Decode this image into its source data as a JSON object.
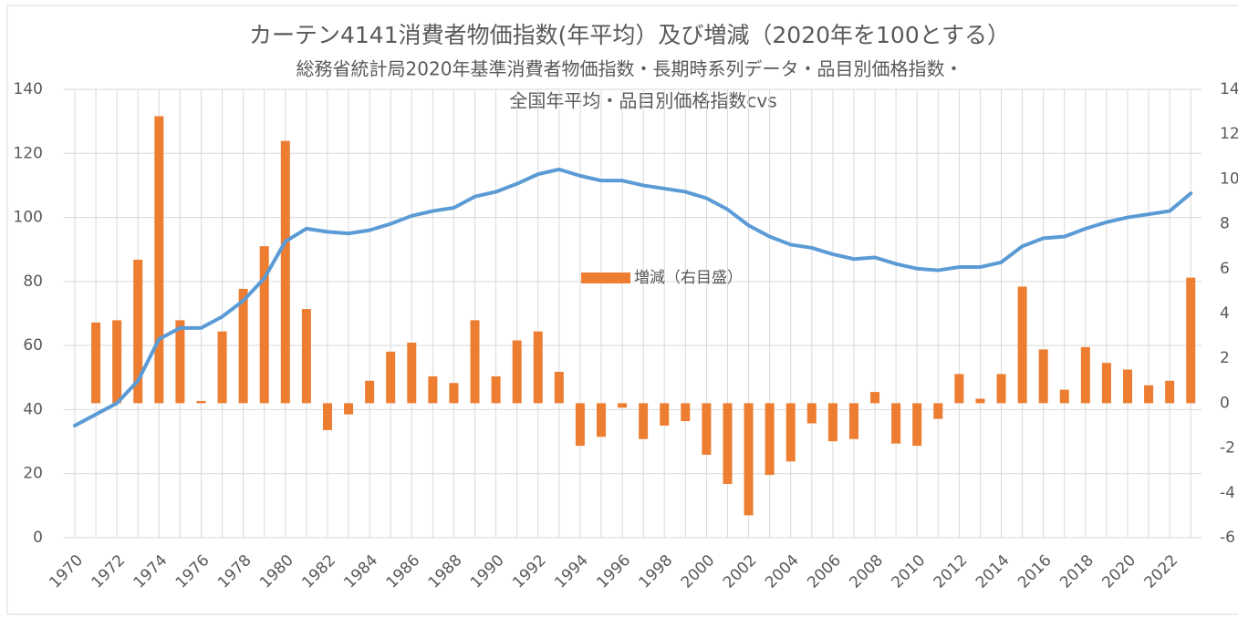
{
  "chart_data": {
    "type": "combo",
    "title": "カーテン4141消費者物価指数(年平均）及び増減（2020年を100とする）",
    "subtitle": [
      "総務省統計局2020年基準消費者物価指数・長期時系列データ・品目別価格指数・",
      "全国年平均・品目別価格指数cvs"
    ],
    "categories": [
      "1970",
      null,
      "1972",
      null,
      "1974",
      null,
      "1976",
      null,
      "1978",
      null,
      "1980",
      null,
      "1982",
      null,
      "1984",
      null,
      "1986",
      null,
      "1988",
      null,
      "1990",
      null,
      "1992",
      null,
      "1994",
      null,
      "1996",
      null,
      "1998",
      null,
      "2000",
      null,
      "2002",
      null,
      "2004",
      null,
      "2006",
      null,
      "2008",
      null,
      "2010",
      null,
      "2012",
      null,
      "2014",
      null,
      "2016",
      null,
      "2018",
      null,
      "2020",
      null,
      "2022",
      null
    ],
    "series": [
      {
        "type": "line",
        "color": "#5b9bd5",
        "values": [
          35,
          38.5,
          42,
          49,
          62,
          65.5,
          65.5,
          69,
          74,
          81,
          92.5,
          96.5,
          95.5,
          95,
          96,
          98,
          100.5,
          102,
          103,
          106.5,
          108,
          110.5,
          113.5,
          115,
          113,
          111.5,
          111.5,
          110,
          109,
          108,
          106,
          102.5,
          97.5,
          94,
          91.5,
          90.5,
          88.5,
          87,
          87.5,
          85.5,
          84,
          83.5,
          84.5,
          84.5,
          86,
          91,
          93.5,
          94,
          96.5,
          98.5,
          100,
          101,
          102,
          107.5
        ]
      },
      {
        "type": "bar",
        "name": "増減（右目盛）",
        "color": "#ed7d31",
        "axis": "y2",
        "values": [
          null,
          3.6,
          3.7,
          6.4,
          12.8,
          3.7,
          0.1,
          3.2,
          5.1,
          7.0,
          11.7,
          4.2,
          -1.2,
          -0.5,
          1.0,
          2.3,
          2.7,
          1.2,
          0.9,
          3.7,
          1.2,
          2.8,
          3.2,
          1.4,
          -1.9,
          -1.5,
          -0.2,
          -1.6,
          -1.0,
          -0.8,
          -2.3,
          -3.6,
          -5.0,
          -3.2,
          -2.6,
          -0.9,
          -1.7,
          -1.6,
          0.5,
          -1.8,
          -1.9,
          -0.7,
          1.3,
          0.2,
          1.3,
          5.2,
          2.4,
          0.6,
          2.5,
          1.8,
          1.5,
          0.8,
          1.0,
          5.6
        ]
      }
    ],
    "ylim": [
      0,
      140
    ],
    "yticks": [
      0,
      20,
      40,
      60,
      80,
      100,
      120,
      140
    ],
    "y2lim": [
      -6,
      14
    ],
    "y2ticks": [
      -6,
      -4,
      -2,
      0,
      2,
      4,
      6,
      8,
      10,
      12,
      14
    ],
    "grid": true,
    "legend": "center"
  }
}
